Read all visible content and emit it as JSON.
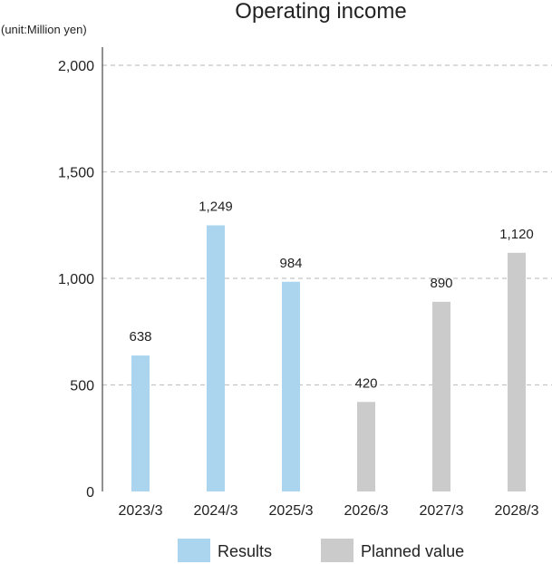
{
  "chart_data": {
    "type": "bar",
    "title": "Operating income",
    "unit_label": "(unit:Million yen)",
    "categories": [
      "2023/3",
      "2024/3",
      "2025/3",
      "2026/3",
      "2027/3",
      "2028/3"
    ],
    "values": [
      638,
      1249,
      984,
      420,
      890,
      1120
    ],
    "value_labels": [
      "638",
      "1,249",
      "984",
      "420",
      "890",
      "1,120"
    ],
    "bar_kind": [
      "results",
      "results",
      "results",
      "planned",
      "planned",
      "planned"
    ],
    "ylim": [
      0,
      2000
    ],
    "yticks": [
      0,
      500,
      1000,
      1500,
      2000
    ],
    "ytick_labels": [
      "0",
      "500",
      "1,000",
      "1,500",
      "2,000"
    ],
    "grid": true,
    "legend_position": "bottom",
    "legend": [
      {
        "key": "results",
        "label": "Results",
        "color": "#abd5ee"
      },
      {
        "key": "planned",
        "label": "Planned value",
        "color": "#cbcbcb"
      }
    ]
  }
}
